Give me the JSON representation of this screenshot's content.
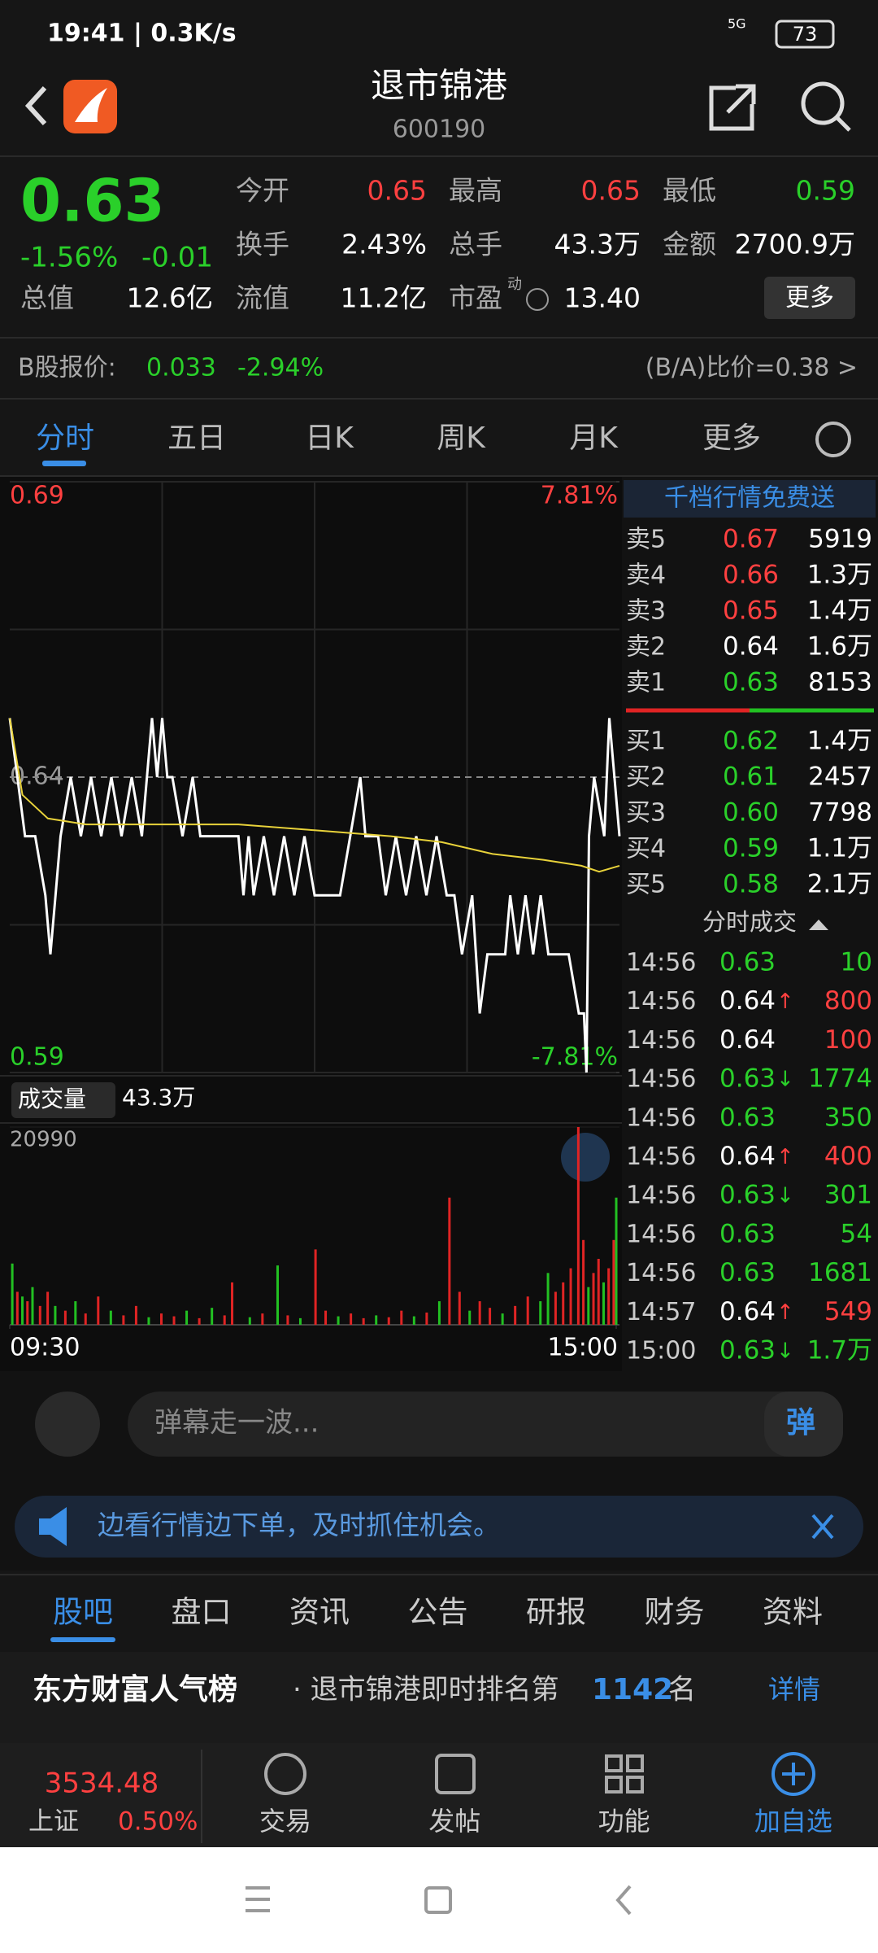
{
  "status_bar": {
    "time": "19:41 | 0.3K/s",
    "network": "5G",
    "battery": "73"
  },
  "header": {
    "title": "退市锦港",
    "code": "600190"
  },
  "quote": {
    "price": "0.63",
    "change_pct": "-1.56%",
    "change": "-0.01",
    "fields": [
      {
        "label": "今开",
        "value": "0.65",
        "color": "#ff4040"
      },
      {
        "label": "最高",
        "value": "0.65",
        "color": "#ff4040"
      },
      {
        "label": "最低",
        "value": "0.59",
        "color": "#2ad02a"
      },
      {
        "label": "换手",
        "value": "2.43%",
        "color": "#ffffff"
      },
      {
        "label": "总手",
        "value": "43.3万",
        "color": "#ffffff"
      },
      {
        "label": "金额",
        "value": "2700.9万",
        "color": "#ffffff"
      },
      {
        "label": "总值",
        "value": "12.6亿",
        "color": "#ffffff"
      },
      {
        "label": "流值",
        "value": "11.2亿",
        "color": "#ffffff"
      },
      {
        "label": "市盈",
        "sup": "动",
        "value": "13.40",
        "color": "#ffffff"
      }
    ],
    "more": "更多"
  },
  "b_share": {
    "label": "B股报价:",
    "price": "0.033",
    "change": "-2.94%",
    "ratio": "(B/A)比价=0.38 >"
  },
  "tabs": [
    "分时",
    "五日",
    "日K",
    "周K",
    "月K",
    "更多"
  ],
  "order_book": {
    "banner": "千档行情免费送",
    "sell": [
      {
        "label": "卖5",
        "price": "0.67",
        "volume": "5919",
        "color": "#ff4040"
      },
      {
        "label": "卖4",
        "price": "0.66",
        "volume": "1.3万",
        "color": "#ff4040"
      },
      {
        "label": "卖3",
        "price": "0.65",
        "volume": "1.4万",
        "color": "#ff4040"
      },
      {
        "label": "卖2",
        "price": "0.64",
        "volume": "1.6万",
        "color": "#ffffff"
      },
      {
        "label": "卖1",
        "price": "0.63",
        "volume": "8153",
        "color": "#2ad02a"
      }
    ],
    "buy": [
      {
        "label": "买1",
        "price": "0.62",
        "volume": "1.4万",
        "color": "#2ad02a"
      },
      {
        "label": "买2",
        "price": "0.61",
        "volume": "2457",
        "color": "#2ad02a"
      },
      {
        "label": "买3",
        "price": "0.60",
        "volume": "7798",
        "color": "#2ad02a"
      },
      {
        "label": "买4",
        "price": "0.59",
        "volume": "1.1万",
        "color": "#2ad02a"
      },
      {
        "label": "买5",
        "price": "0.58",
        "volume": "2.1万",
        "color": "#2ad02a"
      }
    ],
    "trades_title": "分时成交",
    "trades": [
      {
        "time": "14:56",
        "price": "0.63",
        "volume": "10",
        "price_color": "#2ad02a",
        "volume_color": "#2ad02a"
      },
      {
        "time": "14:56",
        "price": "0.64",
        "arrow": "↑",
        "volume": "800",
        "price_color": "#ffffff",
        "volume_color": "#ff4040"
      },
      {
        "time": "14:56",
        "price": "0.64",
        "volume": "100",
        "price_color": "#ffffff",
        "volume_color": "#ff4040"
      },
      {
        "time": "14:56",
        "price": "0.63",
        "arrow": "↓",
        "volume": "1774",
        "price_color": "#2ad02a",
        "volume_color": "#2ad02a"
      },
      {
        "time": "14:56",
        "price": "0.63",
        "volume": "350",
        "price_color": "#2ad02a",
        "volume_color": "#2ad02a"
      },
      {
        "time": "14:56",
        "price": "0.64",
        "arrow": "↑",
        "volume": "400",
        "price_color": "#ffffff",
        "volume_color": "#ff4040"
      },
      {
        "time": "14:56",
        "price": "0.63",
        "arrow": "↓",
        "volume": "301",
        "price_color": "#2ad02a",
        "volume_color": "#2ad02a"
      },
      {
        "time": "14:56",
        "price": "0.63",
        "volume": "54",
        "price_color": "#2ad02a",
        "volume_color": "#2ad02a"
      },
      {
        "time": "14:56",
        "price": "0.63",
        "volume": "1681",
        "price_color": "#2ad02a",
        "volume_color": "#2ad02a"
      },
      {
        "time": "14:57",
        "price": "0.64",
        "arrow": "↑",
        "volume": "549",
        "price_color": "#ffffff",
        "volume_color": "#ff4040"
      },
      {
        "time": "15:00",
        "price": "0.63",
        "arrow": "↓",
        "volume": "1.7万",
        "price_color": "#2ad02a",
        "volume_color": "#2ad02a"
      }
    ]
  },
  "chart_data": [
    {
      "type": "line",
      "xlim": [
        0,
        240
      ],
      "ylim": [
        0.59,
        0.69
      ],
      "yticks": [
        0.59,
        0.64,
        0.69
      ],
      "y2lim": [
        -7.81,
        7.81
      ],
      "y2ticks": [
        {
          "value": -7.81,
          "label": "-7.81%"
        },
        {
          "value": 7.81,
          "label": "7.81%"
        }
      ],
      "grid": true,
      "series": [
        {
          "color": "#ffffff",
          "x": [
            0,
            3,
            6,
            10,
            14,
            16,
            18,
            20,
            24,
            28,
            32,
            36,
            40,
            44,
            48,
            52,
            56,
            58,
            60,
            62,
            64,
            68,
            72,
            75,
            80,
            90,
            92,
            94,
            96,
            100,
            104,
            108,
            112,
            116,
            120,
            130,
            134,
            138,
            140,
            145,
            148,
            152,
            156,
            160,
            164,
            168,
            172,
            175,
            178,
            182,
            185,
            188,
            195,
            197,
            200,
            203,
            206,
            209,
            212,
            220,
            224,
            226,
            227,
            228,
            230,
            234,
            236,
            238,
            240
          ],
          "values": [
            0.65,
            0.64,
            0.63,
            0.63,
            0.62,
            0.61,
            0.62,
            0.63,
            0.64,
            0.63,
            0.64,
            0.63,
            0.64,
            0.63,
            0.64,
            0.63,
            0.65,
            0.64,
            0.65,
            0.64,
            0.64,
            0.63,
            0.64,
            0.63,
            0.63,
            0.63,
            0.62,
            0.63,
            0.62,
            0.63,
            0.62,
            0.63,
            0.62,
            0.63,
            0.62,
            0.62,
            0.63,
            0.64,
            0.63,
            0.63,
            0.62,
            0.63,
            0.62,
            0.63,
            0.62,
            0.63,
            0.62,
            0.62,
            0.61,
            0.62,
            0.6,
            0.61,
            0.61,
            0.62,
            0.61,
            0.62,
            0.61,
            0.62,
            0.61,
            0.61,
            0.6,
            0.6,
            0.59,
            0.63,
            0.64,
            0.63,
            0.65,
            0.64,
            0.63
          ]
        },
        {
          "color": "#e8d23a",
          "x": [
            0,
            5,
            15,
            30,
            60,
            90,
            120,
            150,
            170,
            190,
            210,
            225,
            232,
            240
          ],
          "values": [
            0.65,
            0.637,
            0.633,
            0.632,
            0.632,
            0.632,
            0.631,
            0.63,
            0.629,
            0.627,
            0.626,
            0.625,
            0.624,
            0.625
          ]
        }
      ]
    },
    {
      "type": "bar",
      "label": "成交量",
      "total": "43.3万",
      "xlim": [
        0,
        240
      ],
      "xticks": [
        {
          "value": 0,
          "label": "09:30"
        },
        {
          "value": 240,
          "label": "15:00"
        }
      ],
      "ylim": [
        0,
        20990
      ],
      "yticks": [
        20990
      ],
      "x": [
        1,
        3,
        5,
        7,
        9,
        12,
        15,
        18,
        22,
        26,
        30,
        35,
        40,
        45,
        50,
        55,
        60,
        65,
        70,
        75,
        80,
        85,
        88,
        95,
        100,
        106,
        110,
        115,
        121,
        125,
        130,
        135,
        140,
        145,
        150,
        155,
        160,
        165,
        170,
        174,
        178,
        182,
        186,
        190,
        195,
        200,
        205,
        210,
        213,
        216,
        219,
        222,
        225,
        227,
        229,
        231,
        233,
        235,
        237,
        239,
        240
      ],
      "values": [
        6500,
        3500,
        3000,
        2500,
        4000,
        2000,
        3500,
        2000,
        1500,
        2500,
        1200,
        3000,
        1500,
        1000,
        2000,
        800,
        1200,
        900,
        1500,
        700,
        1800,
        1000,
        4500,
        800,
        1200,
        6300,
        1000,
        700,
        8000,
        1500,
        900,
        1200,
        700,
        1000,
        800,
        1500,
        900,
        1300,
        2500,
        13500,
        3500,
        1500,
        2500,
        1800,
        1200,
        2000,
        3000,
        2500,
        5500,
        3500,
        4500,
        6000,
        20990,
        9000,
        4000,
        5500,
        7000,
        4500,
        6000,
        9000,
        13500
      ],
      "colors": [
        "#22c022",
        "#e02424",
        "#22c022",
        "#e02424",
        "#22c022",
        "#e02424",
        "#e02424",
        "#22c022",
        "#e02424",
        "#22c022",
        "#e02424",
        "#e02424",
        "#22c022",
        "#e02424",
        "#e02424",
        "#22c022",
        "#e02424",
        "#e02424",
        "#22c022",
        "#e02424",
        "#22c022",
        "#e02424",
        "#e02424",
        "#22c022",
        "#e02424",
        "#22c022",
        "#e02424",
        "#22c022",
        "#e02424",
        "#e02424",
        "#22c022",
        "#e02424",
        "#e02424",
        "#22c022",
        "#e02424",
        "#e02424",
        "#22c022",
        "#e02424",
        "#22c022",
        "#e02424",
        "#e02424",
        "#22c022",
        "#e02424",
        "#e02424",
        "#22c022",
        "#e02424",
        "#e02424",
        "#22c022",
        "#22c022",
        "#e02424",
        "#e02424",
        "#e02424",
        "#e02424",
        "#e02424",
        "#22c022",
        "#e02424",
        "#e02424",
        "#22c022",
        "#e02424",
        "#e02424",
        "#22c022"
      ]
    }
  ],
  "comment_box": {
    "placeholder": "弹幕走一波...",
    "button": "弹"
  },
  "banner": "边看行情边下单，及时抓住机会。",
  "section_tabs": [
    "股吧",
    "盘口",
    "资讯",
    "公告",
    "研报",
    "财务",
    "资料"
  ],
  "ranking": {
    "brand": "东方财富人气榜",
    "text": "· 退市锦港即时排名第",
    "rank": "1142",
    "unit": "名",
    "detail": "详情"
  },
  "bottom_nav": {
    "index_value": "3534.48",
    "index_name": "上证",
    "index_change": "0.50%",
    "items": [
      "交易",
      "发帖",
      "功能",
      "加自选"
    ]
  }
}
